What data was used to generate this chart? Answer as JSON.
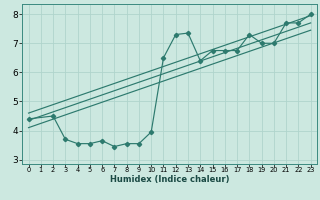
{
  "title": "",
  "xlabel": "Humidex (Indice chaleur)",
  "ylabel": "",
  "bg_color": "#cce8e0",
  "line_color": "#2d7a6e",
  "grid_color": "#b0d4cc",
  "xlim": [
    -0.5,
    23.5
  ],
  "ylim": [
    2.85,
    8.35
  ],
  "xticks": [
    0,
    1,
    2,
    3,
    4,
    5,
    6,
    7,
    8,
    9,
    10,
    11,
    12,
    13,
    14,
    15,
    16,
    17,
    18,
    19,
    20,
    21,
    22,
    23
  ],
  "yticks": [
    3,
    4,
    5,
    6,
    7,
    8
  ],
  "scatter_x": [
    0,
    2,
    3,
    4,
    5,
    6,
    7,
    8,
    9,
    10,
    11,
    12,
    13,
    14,
    15,
    16,
    17,
    18,
    19,
    20,
    21,
    22,
    23
  ],
  "scatter_y": [
    4.4,
    4.5,
    3.7,
    3.55,
    3.55,
    3.65,
    3.45,
    3.55,
    3.55,
    3.95,
    6.5,
    7.3,
    7.35,
    6.4,
    6.75,
    6.75,
    6.75,
    7.3,
    7.0,
    7.0,
    7.7,
    7.7,
    8.0
  ],
  "line1_x": [
    0,
    23
  ],
  "line1_y": [
    4.35,
    7.7
  ],
  "line2_x": [
    0,
    23
  ],
  "line2_y": [
    4.6,
    7.95
  ],
  "line3_x": [
    0,
    23
  ],
  "line3_y": [
    4.1,
    7.45
  ],
  "xlabel_fontsize": 6.0,
  "ytick_fontsize": 6.5,
  "xtick_fontsize": 4.8
}
